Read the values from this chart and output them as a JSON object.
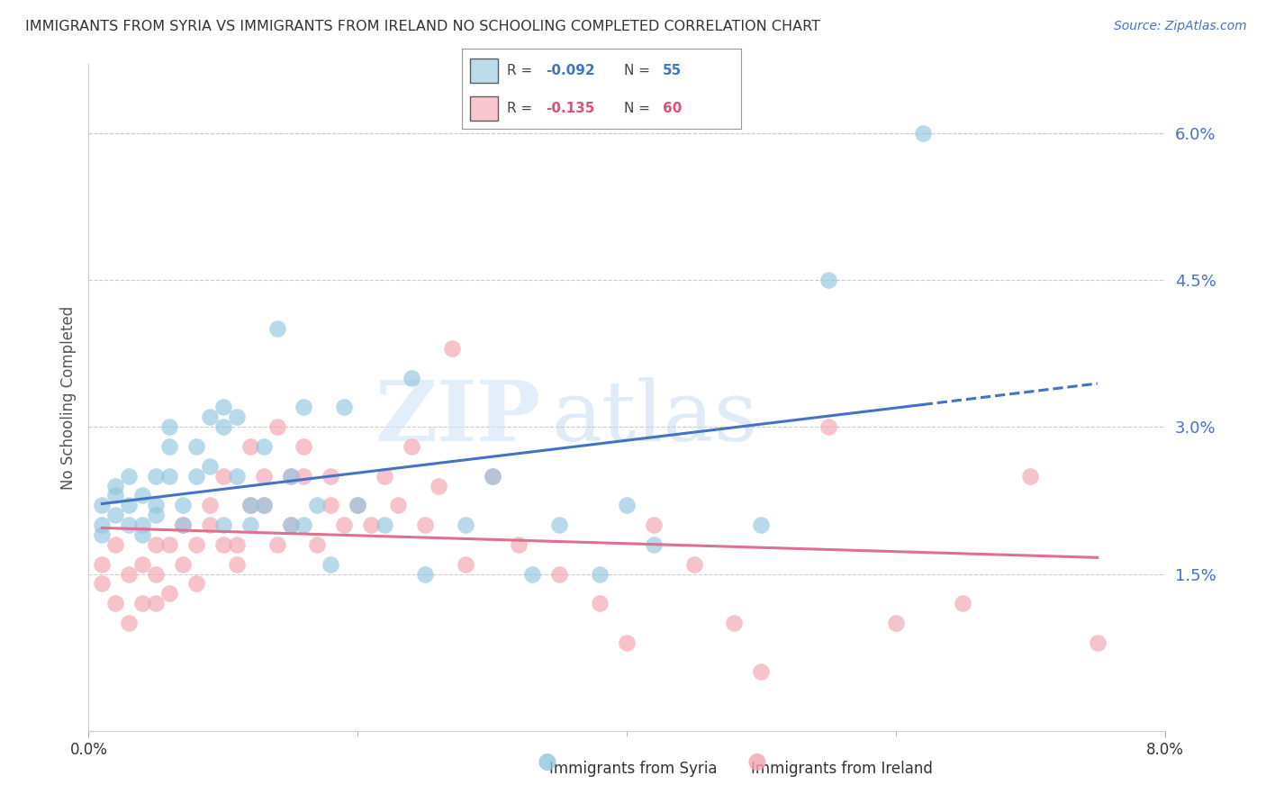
{
  "title": "IMMIGRANTS FROM SYRIA VS IMMIGRANTS FROM IRELAND NO SCHOOLING COMPLETED CORRELATION CHART",
  "source": "Source: ZipAtlas.com",
  "ylabel": "No Schooling Completed",
  "xlim": [
    0.0,
    0.08
  ],
  "ylim": [
    -0.001,
    0.067
  ],
  "y_ticks_right": [
    0.015,
    0.03,
    0.045,
    0.06
  ],
  "grid_color": "#cccccc",
  "background_color": "#ffffff",
  "syria_color": "#92c5de",
  "ireland_color": "#f4a3b0",
  "syria_line_color": "#4472c4",
  "ireland_line_color": "#e07090",
  "legend_syria_label": "Immigrants from Syria",
  "legend_ireland_label": "Immigrants from Ireland",
  "watermark_zip": "ZIP",
  "watermark_atlas": "atlas",
  "syria_R": -0.092,
  "syria_N": 55,
  "ireland_R": -0.135,
  "ireland_N": 60,
  "syria_x": [
    0.001,
    0.001,
    0.001,
    0.002,
    0.002,
    0.002,
    0.003,
    0.003,
    0.003,
    0.004,
    0.004,
    0.004,
    0.005,
    0.005,
    0.005,
    0.006,
    0.006,
    0.006,
    0.007,
    0.007,
    0.008,
    0.008,
    0.009,
    0.009,
    0.01,
    0.01,
    0.01,
    0.011,
    0.011,
    0.012,
    0.012,
    0.013,
    0.013,
    0.014,
    0.015,
    0.015,
    0.016,
    0.016,
    0.017,
    0.018,
    0.019,
    0.02,
    0.022,
    0.024,
    0.025,
    0.028,
    0.03,
    0.033,
    0.035,
    0.038,
    0.04,
    0.042,
    0.05,
    0.055,
    0.062
  ],
  "syria_y": [
    0.022,
    0.02,
    0.019,
    0.024,
    0.021,
    0.023,
    0.02,
    0.022,
    0.025,
    0.019,
    0.023,
    0.02,
    0.025,
    0.021,
    0.022,
    0.028,
    0.025,
    0.03,
    0.02,
    0.022,
    0.028,
    0.025,
    0.031,
    0.026,
    0.02,
    0.03,
    0.032,
    0.025,
    0.031,
    0.02,
    0.022,
    0.028,
    0.022,
    0.04,
    0.02,
    0.025,
    0.02,
    0.032,
    0.022,
    0.016,
    0.032,
    0.022,
    0.02,
    0.035,
    0.015,
    0.02,
    0.025,
    0.015,
    0.02,
    0.015,
    0.022,
    0.018,
    0.02,
    0.045,
    0.06
  ],
  "ireland_x": [
    0.001,
    0.001,
    0.002,
    0.002,
    0.003,
    0.003,
    0.004,
    0.004,
    0.005,
    0.005,
    0.005,
    0.006,
    0.006,
    0.007,
    0.007,
    0.008,
    0.008,
    0.009,
    0.009,
    0.01,
    0.01,
    0.011,
    0.011,
    0.012,
    0.012,
    0.013,
    0.013,
    0.014,
    0.014,
    0.015,
    0.015,
    0.016,
    0.016,
    0.017,
    0.018,
    0.018,
    0.019,
    0.02,
    0.021,
    0.022,
    0.023,
    0.024,
    0.025,
    0.026,
    0.027,
    0.028,
    0.03,
    0.032,
    0.035,
    0.038,
    0.04,
    0.042,
    0.045,
    0.048,
    0.05,
    0.055,
    0.06,
    0.065,
    0.07,
    0.075
  ],
  "ireland_y": [
    0.016,
    0.014,
    0.012,
    0.018,
    0.01,
    0.015,
    0.012,
    0.016,
    0.012,
    0.015,
    0.018,
    0.018,
    0.013,
    0.016,
    0.02,
    0.018,
    0.014,
    0.02,
    0.022,
    0.018,
    0.025,
    0.018,
    0.016,
    0.022,
    0.028,
    0.025,
    0.022,
    0.018,
    0.03,
    0.025,
    0.02,
    0.025,
    0.028,
    0.018,
    0.022,
    0.025,
    0.02,
    0.022,
    0.02,
    0.025,
    0.022,
    0.028,
    0.02,
    0.024,
    0.038,
    0.016,
    0.025,
    0.018,
    0.015,
    0.012,
    0.008,
    0.02,
    0.016,
    0.01,
    0.005,
    0.03,
    0.01,
    0.012,
    0.025,
    0.008
  ]
}
